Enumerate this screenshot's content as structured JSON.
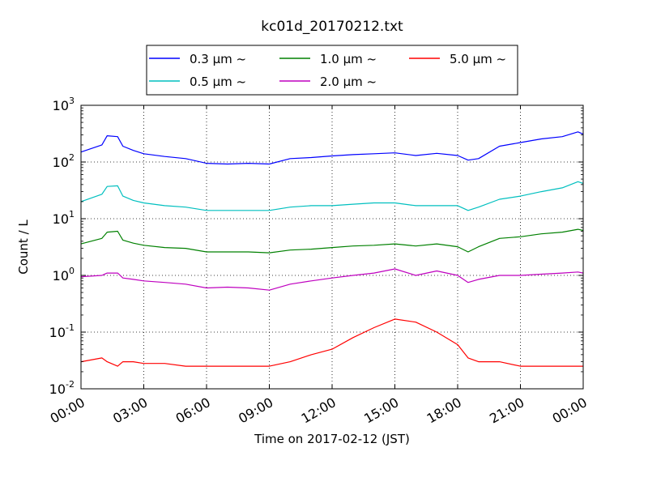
{
  "chart_data": {
    "type": "line",
    "title": "kc01d_20170212.txt",
    "xlabel": "Time on 2017-02-12 (JST)",
    "ylabel": "Count / L",
    "yscale": "log",
    "ylim": [
      0.01,
      1000
    ],
    "xlim": [
      "2017-02-12T00:00",
      "2017-02-13T00:00"
    ],
    "grid": true,
    "legend_position": "top-center, above plot",
    "legend_suffix": "~",
    "x_tick_labels": [
      "00:00",
      "03:00",
      "06:00",
      "09:00",
      "12:00",
      "15:00",
      "18:00",
      "21:00",
      "00:00"
    ],
    "y_tick_labels": [
      {
        "base": "10",
        "exp": "-2"
      },
      {
        "base": "10",
        "exp": "-1"
      },
      {
        "base": "10",
        "exp": "0"
      },
      {
        "base": "10",
        "exp": "1"
      },
      {
        "base": "10",
        "exp": "2"
      },
      {
        "base": "10",
        "exp": "3"
      }
    ],
    "x": [
      "2017-02-12T00:00",
      "2017-02-12T01:00",
      "2017-02-12T01:15",
      "2017-02-12T01:45",
      "2017-02-12T02:00",
      "2017-02-12T02:30",
      "2017-02-12T03:00",
      "2017-02-12T04:00",
      "2017-02-12T05:00",
      "2017-02-12T06:00",
      "2017-02-12T07:00",
      "2017-02-12T08:00",
      "2017-02-12T09:00",
      "2017-02-12T10:00",
      "2017-02-12T11:00",
      "2017-02-12T12:00",
      "2017-02-12T13:00",
      "2017-02-12T14:00",
      "2017-02-12T15:00",
      "2017-02-12T16:00",
      "2017-02-12T17:00",
      "2017-02-12T18:00",
      "2017-02-12T18:30",
      "2017-02-12T19:00",
      "2017-02-12T20:00",
      "2017-02-12T21:00",
      "2017-02-12T22:00",
      "2017-02-12T23:00",
      "2017-02-12T23:45",
      "2017-02-13T00:00"
    ],
    "series": [
      {
        "name": "0.3 μm",
        "color": "#0000ff",
        "values": [
          150,
          200,
          290,
          280,
          190,
          160,
          140,
          125,
          115,
          95,
          92,
          95,
          92,
          115,
          120,
          128,
          135,
          140,
          145,
          130,
          142,
          130,
          108,
          115,
          190,
          220,
          255,
          280,
          340,
          310
        ]
      },
      {
        "name": "0.5 μm",
        "color": "#00bfbf",
        "values": [
          20,
          27,
          37,
          38,
          25,
          21,
          19,
          17,
          16,
          14,
          14,
          14,
          14,
          16,
          17,
          17,
          18,
          19,
          19,
          17,
          17,
          17,
          14,
          16,
          22,
          25,
          30,
          35,
          45,
          42
        ]
      },
      {
        "name": "1.0 μm",
        "color": "#008000",
        "values": [
          3.6,
          4.5,
          5.8,
          6.0,
          4.2,
          3.7,
          3.4,
          3.1,
          3.0,
          2.6,
          2.6,
          2.6,
          2.5,
          2.8,
          2.9,
          3.1,
          3.3,
          3.4,
          3.6,
          3.3,
          3.6,
          3.2,
          2.6,
          3.2,
          4.5,
          4.8,
          5.4,
          5.8,
          6.5,
          6.2
        ]
      },
      {
        "name": "2.0 μm",
        "color": "#bf00bf",
        "values": [
          0.95,
          1.0,
          1.1,
          1.1,
          0.9,
          0.85,
          0.8,
          0.75,
          0.7,
          0.6,
          0.62,
          0.6,
          0.55,
          0.7,
          0.8,
          0.9,
          1.0,
          1.1,
          1.3,
          1.0,
          1.2,
          1.0,
          0.75,
          0.85,
          1.0,
          1.0,
          1.05,
          1.1,
          1.15,
          1.1
        ]
      },
      {
        "name": "5.0 μm",
        "color": "#ff0000",
        "values": [
          0.03,
          0.035,
          0.03,
          0.025,
          0.03,
          0.03,
          0.028,
          0.028,
          0.025,
          0.025,
          0.025,
          0.025,
          0.025,
          0.03,
          0.04,
          0.05,
          0.08,
          0.12,
          0.17,
          0.15,
          0.1,
          0.06,
          0.035,
          0.03,
          0.03,
          0.025,
          0.025,
          0.025,
          0.025,
          0.025
        ]
      }
    ]
  }
}
